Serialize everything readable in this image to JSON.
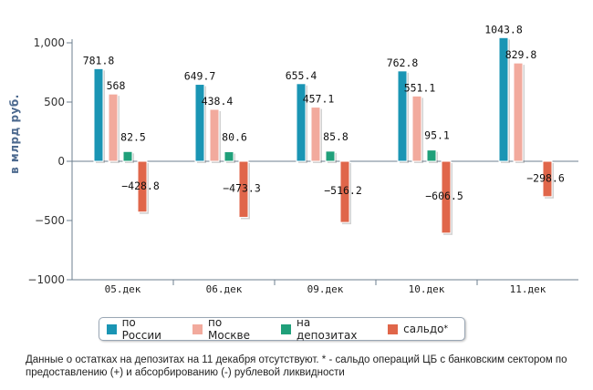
{
  "chart_data": {
    "type": "bar",
    "categories": [
      "05.дек",
      "06.дек",
      "09.дек",
      "10.дек",
      "11.дек"
    ],
    "series": [
      {
        "name": "по России",
        "color": "#1a95b4",
        "values": [
          781.8,
          649.7,
          655.4,
          762.8,
          1043.8
        ],
        "labels": [
          "781.8",
          "649.7",
          "655.4",
          "762.8",
          "1043.8"
        ]
      },
      {
        "name": "по Москве",
        "color": "#f2aa9d",
        "values": [
          568,
          438.4,
          457.1,
          551.1,
          829.8
        ],
        "labels": [
          "568",
          "438.4",
          "457.1",
          "551.1",
          "829.8"
        ]
      },
      {
        "name": "на депозитах",
        "color": "#20a07a",
        "values": [
          82.5,
          80.6,
          85.8,
          95.1,
          null
        ],
        "labels": [
          "82.5",
          "80.6",
          "85.8",
          "95.1",
          ""
        ]
      },
      {
        "name": "сальдо",
        "legend_marker": "*",
        "color": "#e0664a",
        "values": [
          -428.8,
          -473.3,
          -516.2,
          -606.5,
          -298.6
        ],
        "labels": [
          "-428.8",
          "-473.3",
          "-516.2",
          "-606.5",
          "-298.6"
        ]
      }
    ],
    "ylabel": "в млрд руб.",
    "ylim": [
      -1000,
      1000
    ],
    "yticks": [
      -1000,
      -500,
      0,
      500,
      1000
    ],
    "ytick_labels": [
      "−1000",
      "−500",
      "0",
      "500",
      "1,000"
    ],
    "grid": false,
    "legend_position": "bottom"
  },
  "footnote": "Данные о остатках на депозитах на 11 декабря отсутствуют. * - сальдо операций ЦБ с банковским сектором по предоставлению (+) и абсорбированию (-) рублевой ликвидности"
}
